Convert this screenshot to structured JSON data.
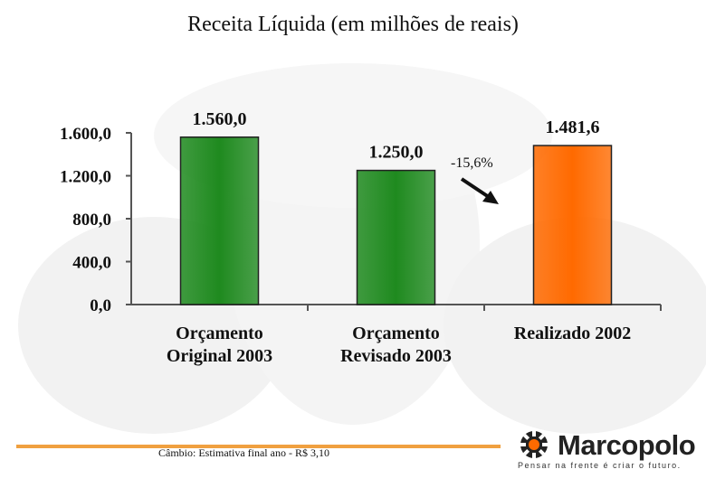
{
  "title": "Receita Líquida  (em milhões de reais)",
  "colors": {
    "bar_green": "#1f8a1f",
    "bar_orange": "#ff6a00",
    "axis": "#555555",
    "footer_line": "#f0a040"
  },
  "chart_data": {
    "type": "bar",
    "title": "Receita Líquida  (em milhões de reais)",
    "categories": [
      [
        "Orçamento",
        "Original 2003"
      ],
      [
        "Orçamento",
        "Revisado 2003"
      ],
      [
        "Realizado 2002"
      ]
    ],
    "values": [
      1560.0,
      1250.0,
      1481.6
    ],
    "value_labels": [
      "1.560,0",
      "1.250,0",
      "1.481,6"
    ],
    "bar_colors": [
      "#1f8a1f",
      "#1f8a1f",
      "#ff6a00"
    ],
    "y_ticks": [
      0,
      400,
      800,
      1200,
      1600
    ],
    "y_tick_labels": [
      "0,0",
      "400,0",
      "800,0",
      "1.200,0",
      "1.600,0"
    ],
    "ylim": [
      0,
      1600
    ],
    "grid": false,
    "annotation": "-15,6%"
  },
  "footer": {
    "note": "Câmbio: Estimativa final ano - R$ 3,10"
  },
  "logo": {
    "name": "Marcopolo",
    "tagline": "Pensar na frente é criar o futuro."
  }
}
